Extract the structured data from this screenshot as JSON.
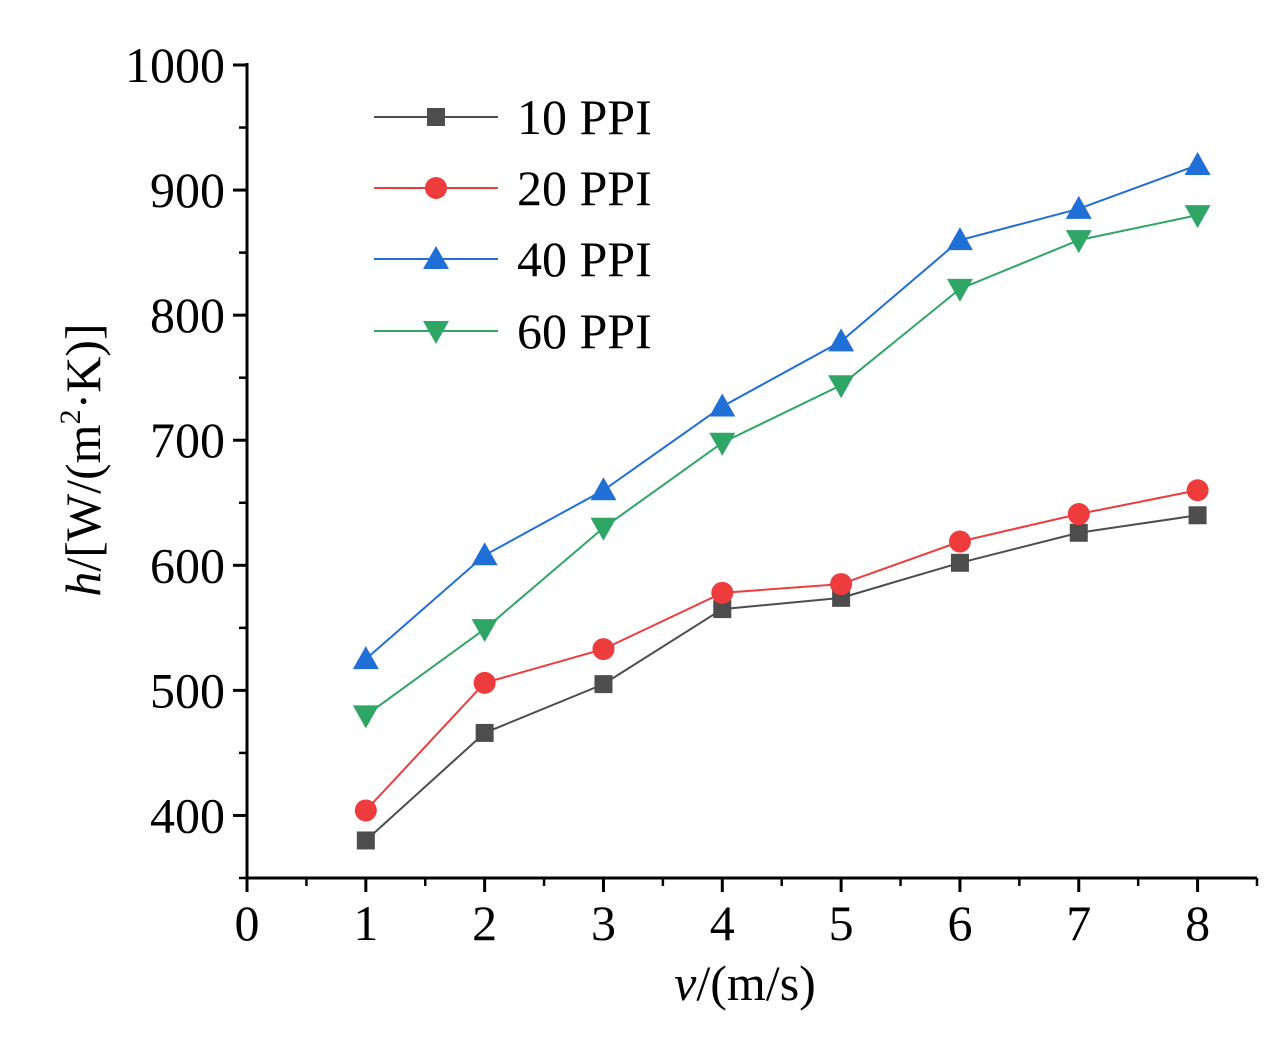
{
  "chart_data": {
    "type": "line",
    "x": [
      1,
      2,
      3,
      4,
      5,
      6,
      7,
      8
    ],
    "series": [
      {
        "name": "10 PPI",
        "values": [
          380,
          466,
          505,
          565,
          574,
          602,
          626,
          640
        ],
        "color": "#4d4d4d",
        "marker": "square"
      },
      {
        "name": "20 PPI",
        "values": [
          404,
          506,
          533,
          578,
          585,
          619,
          641,
          660
        ],
        "color": "#ee3b3b",
        "marker": "circle"
      },
      {
        "name": "40 PPI",
        "values": [
          525,
          608,
          660,
          727,
          779,
          860,
          885,
          920
        ],
        "color": "#1f6fd6",
        "marker": "triangle-up"
      },
      {
        "name": "60 PPI",
        "values": [
          480,
          549,
          630,
          698,
          744,
          821,
          860,
          880
        ],
        "color": "#2fa566",
        "marker": "triangle-down"
      }
    ],
    "xlim": [
      0,
      8.5
    ],
    "ylim": [
      350,
      1000
    ],
    "xticks": [
      "0",
      "1",
      "2",
      "3",
      "4",
      "5",
      "6",
      "7",
      "8"
    ],
    "yticks": [
      "400",
      "500",
      "600",
      "700",
      "800",
      "900",
      "1000"
    ],
    "xlabel": {
      "var": "v",
      "rest": "/(m/s)"
    },
    "ylabel": {
      "var": "h",
      "rest": "/[W/(m",
      "sup": "2",
      "tail": "·K)]"
    },
    "legend_position": "top-left",
    "grid": false
  }
}
